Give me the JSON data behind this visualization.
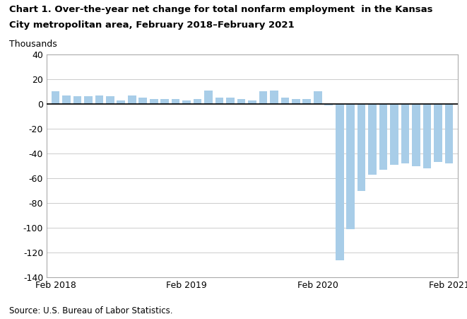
{
  "title_line1": "Chart 1. Over-the-year net change for total nonfarm employment  in the Kansas",
  "title_line2": "City metropolitan area, February 2018–February 2021",
  "ylabel": "Thousands",
  "source": "Source: U.S. Bureau of Labor Statistics.",
  "bar_color": "#a8cde8",
  "background_color": "#ffffff",
  "ylim": [
    -140,
    40
  ],
  "yticks": [
    -140,
    -120,
    -100,
    -80,
    -60,
    -40,
    -20,
    0,
    20,
    40
  ],
  "values": [
    10,
    7,
    6,
    6,
    7,
    6,
    3,
    7,
    5,
    4,
    4,
    4,
    3,
    4,
    11,
    5,
    5,
    4,
    3,
    10,
    11,
    5,
    4,
    4,
    10,
    -1,
    -126,
    -101,
    -70,
    -57,
    -53,
    -49,
    -48,
    -50,
    -52,
    -47,
    -48
  ],
  "xtick_positions": [
    0,
    12,
    24,
    36
  ],
  "xtick_labels": [
    "Feb 2018",
    "Feb 2019",
    "Feb 2020",
    "Feb 2021"
  ]
}
